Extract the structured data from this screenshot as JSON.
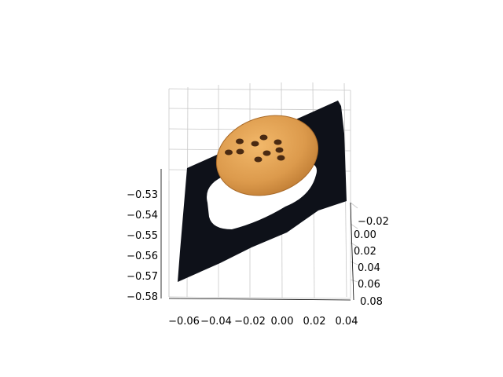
{
  "chart_data": {
    "type": "scatter",
    "title": "",
    "xlabel": "",
    "ylabel": "",
    "zlabel": "",
    "grid": true,
    "x_ticks": [
      "−0.06",
      "−0.04",
      "−0.02",
      "0.00",
      "0.02",
      "0.04"
    ],
    "y_ticks": [
      "−0.02",
      "0.00",
      "0.02",
      "0.04",
      "0.06",
      "0.08"
    ],
    "z_ticks": [
      "−0.53",
      "−0.54",
      "−0.55",
      "−0.56",
      "−0.57",
      "−0.58"
    ],
    "xlim": [
      -0.07,
      0.045
    ],
    "ylim": [
      -0.03,
      0.08
    ],
    "zlim": [
      -0.58,
      -0.525
    ],
    "series": [
      {
        "color": "#0d1018"
      },
      {
        "color": "#d9974a"
      }
    ],
    "chips": [
      {
        "x": -0.02,
        "y": 0.035
      },
      {
        "x": -0.01,
        "y": 0.005
      },
      {
        "x": 0.005,
        "y": 0.03
      },
      {
        "x": -0.03,
        "y": 0.015
      },
      {
        "x": 0.0,
        "y": 0.045
      },
      {
        "x": -0.04,
        "y": 0.01
      },
      {
        "x": 0.01,
        "y": 0.015
      },
      {
        "x": -0.015,
        "y": 0.05
      },
      {
        "x": -0.035,
        "y": 0.035
      },
      {
        "x": -0.005,
        "y": 0.02
      }
    ]
  }
}
